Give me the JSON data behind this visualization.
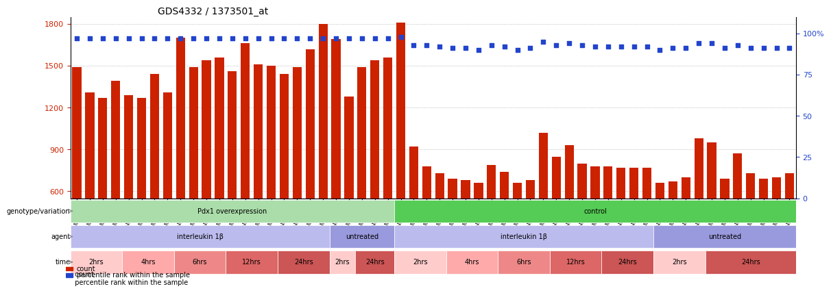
{
  "title": "GDS4332 / 1373501_at",
  "samples": [
    "GSM998740",
    "GSM998753",
    "GSM998766",
    "GSM998774",
    "GSM998729",
    "GSM998754",
    "GSM998767",
    "GSM998775",
    "GSM998741",
    "GSM998755",
    "GSM998768",
    "GSM998776",
    "GSM998730",
    "GSM998742",
    "GSM998747",
    "GSM998777",
    "GSM998731",
    "GSM998748",
    "GSM998756",
    "GSM998769",
    "GSM998732",
    "GSM998749",
    "GSM998757",
    "GSM998778",
    "GSM998733",
    "GSM998758",
    "GSM998770",
    "GSM998779",
    "GSM998734",
    "GSM998743",
    "GSM998759",
    "GSM998780",
    "GSM998735",
    "GSM998750",
    "GSM998760",
    "GSM998782",
    "GSM998744",
    "GSM998751",
    "GSM998761",
    "GSM998771",
    "GSM998736",
    "GSM998745",
    "GSM998762",
    "GSM998781",
    "GSM998737",
    "GSM998752",
    "GSM998763",
    "GSM998772",
    "GSM998738",
    "GSM998764",
    "GSM998773",
    "GSM998783",
    "GSM998739",
    "GSM998746",
    "GSM998765",
    "GSM998784"
  ],
  "bar_values": [
    1490,
    1310,
    1270,
    1390,
    1290,
    1270,
    1440,
    1310,
    1700,
    1490,
    1540,
    1560,
    1460,
    1660,
    1510,
    1500,
    1440,
    1490,
    1620,
    1800,
    1690,
    1280,
    1490,
    1540,
    1560,
    1810,
    920,
    780,
    730,
    690,
    680,
    660,
    790,
    740,
    660,
    680,
    1020,
    850,
    930,
    800,
    780,
    780,
    770,
    770,
    770,
    660,
    670,
    700,
    980,
    950,
    690,
    870,
    730,
    690,
    700,
    730
  ],
  "percentile_values": [
    97,
    97,
    97,
    97,
    97,
    97,
    97,
    97,
    97,
    97,
    97,
    97,
    97,
    97,
    97,
    97,
    97,
    97,
    97,
    97,
    97,
    97,
    97,
    97,
    97,
    98,
    93,
    93,
    92,
    91,
    91,
    90,
    93,
    92,
    90,
    91,
    95,
    93,
    94,
    93,
    92,
    92,
    92,
    92,
    92,
    90,
    91,
    91,
    94,
    94,
    91,
    93,
    91,
    91,
    91,
    91
  ],
  "ylim_left": [
    550,
    1850
  ],
  "ylim_right": [
    0,
    110
  ],
  "yticks_left": [
    600,
    900,
    1200,
    1500,
    1800
  ],
  "yticks_right": [
    0,
    25,
    50,
    75,
    100
  ],
  "bar_color": "#cc2200",
  "dot_color": "#2244cc",
  "bg_color": "#ffffff",
  "grid_color": "#aaaaaa",
  "annotation_rows": [
    {
      "label": "genotype/variation",
      "segments": [
        {
          "text": "Pdx1 overexpression",
          "start": 0,
          "end": 25,
          "color": "#aaddaa"
        },
        {
          "text": "control",
          "start": 25,
          "end": 56,
          "color": "#55cc55"
        }
      ]
    },
    {
      "label": "agent",
      "segments": [
        {
          "text": "interleukin 1β",
          "start": 0,
          "end": 20,
          "color": "#bbbbee"
        },
        {
          "text": "untreated",
          "start": 20,
          "end": 25,
          "color": "#9999dd"
        },
        {
          "text": "interleukin 1β",
          "start": 25,
          "end": 45,
          "color": "#bbbbee"
        },
        {
          "text": "untreated",
          "start": 45,
          "end": 56,
          "color": "#9999dd"
        }
      ]
    },
    {
      "label": "time",
      "segments": [
        {
          "text": "2hrs",
          "start": 0,
          "end": 4,
          "color": "#ffcccc"
        },
        {
          "text": "4hrs",
          "start": 4,
          "end": 8,
          "color": "#ffaaaa"
        },
        {
          "text": "6hrs",
          "start": 8,
          "end": 12,
          "color": "#ee8888"
        },
        {
          "text": "12hrs",
          "start": 12,
          "end": 16,
          "color": "#dd6666"
        },
        {
          "text": "24hrs",
          "start": 16,
          "end": 20,
          "color": "#cc5555"
        },
        {
          "text": "2hrs",
          "start": 20,
          "end": 22,
          "color": "#ffcccc"
        },
        {
          "text": "24hrs",
          "start": 22,
          "end": 25,
          "color": "#cc5555"
        },
        {
          "text": "2hrs",
          "start": 25,
          "end": 29,
          "color": "#ffcccc"
        },
        {
          "text": "4hrs",
          "start": 29,
          "end": 33,
          "color": "#ffaaaa"
        },
        {
          "text": "6hrs",
          "start": 33,
          "end": 37,
          "color": "#ee8888"
        },
        {
          "text": "12hrs",
          "start": 37,
          "end": 41,
          "color": "#dd6666"
        },
        {
          "text": "24hrs",
          "start": 41,
          "end": 45,
          "color": "#cc5555"
        },
        {
          "text": "2hrs",
          "start": 45,
          "end": 49,
          "color": "#ffcccc"
        },
        {
          "text": "24hrs",
          "start": 49,
          "end": 56,
          "color": "#cc5555"
        }
      ]
    }
  ]
}
